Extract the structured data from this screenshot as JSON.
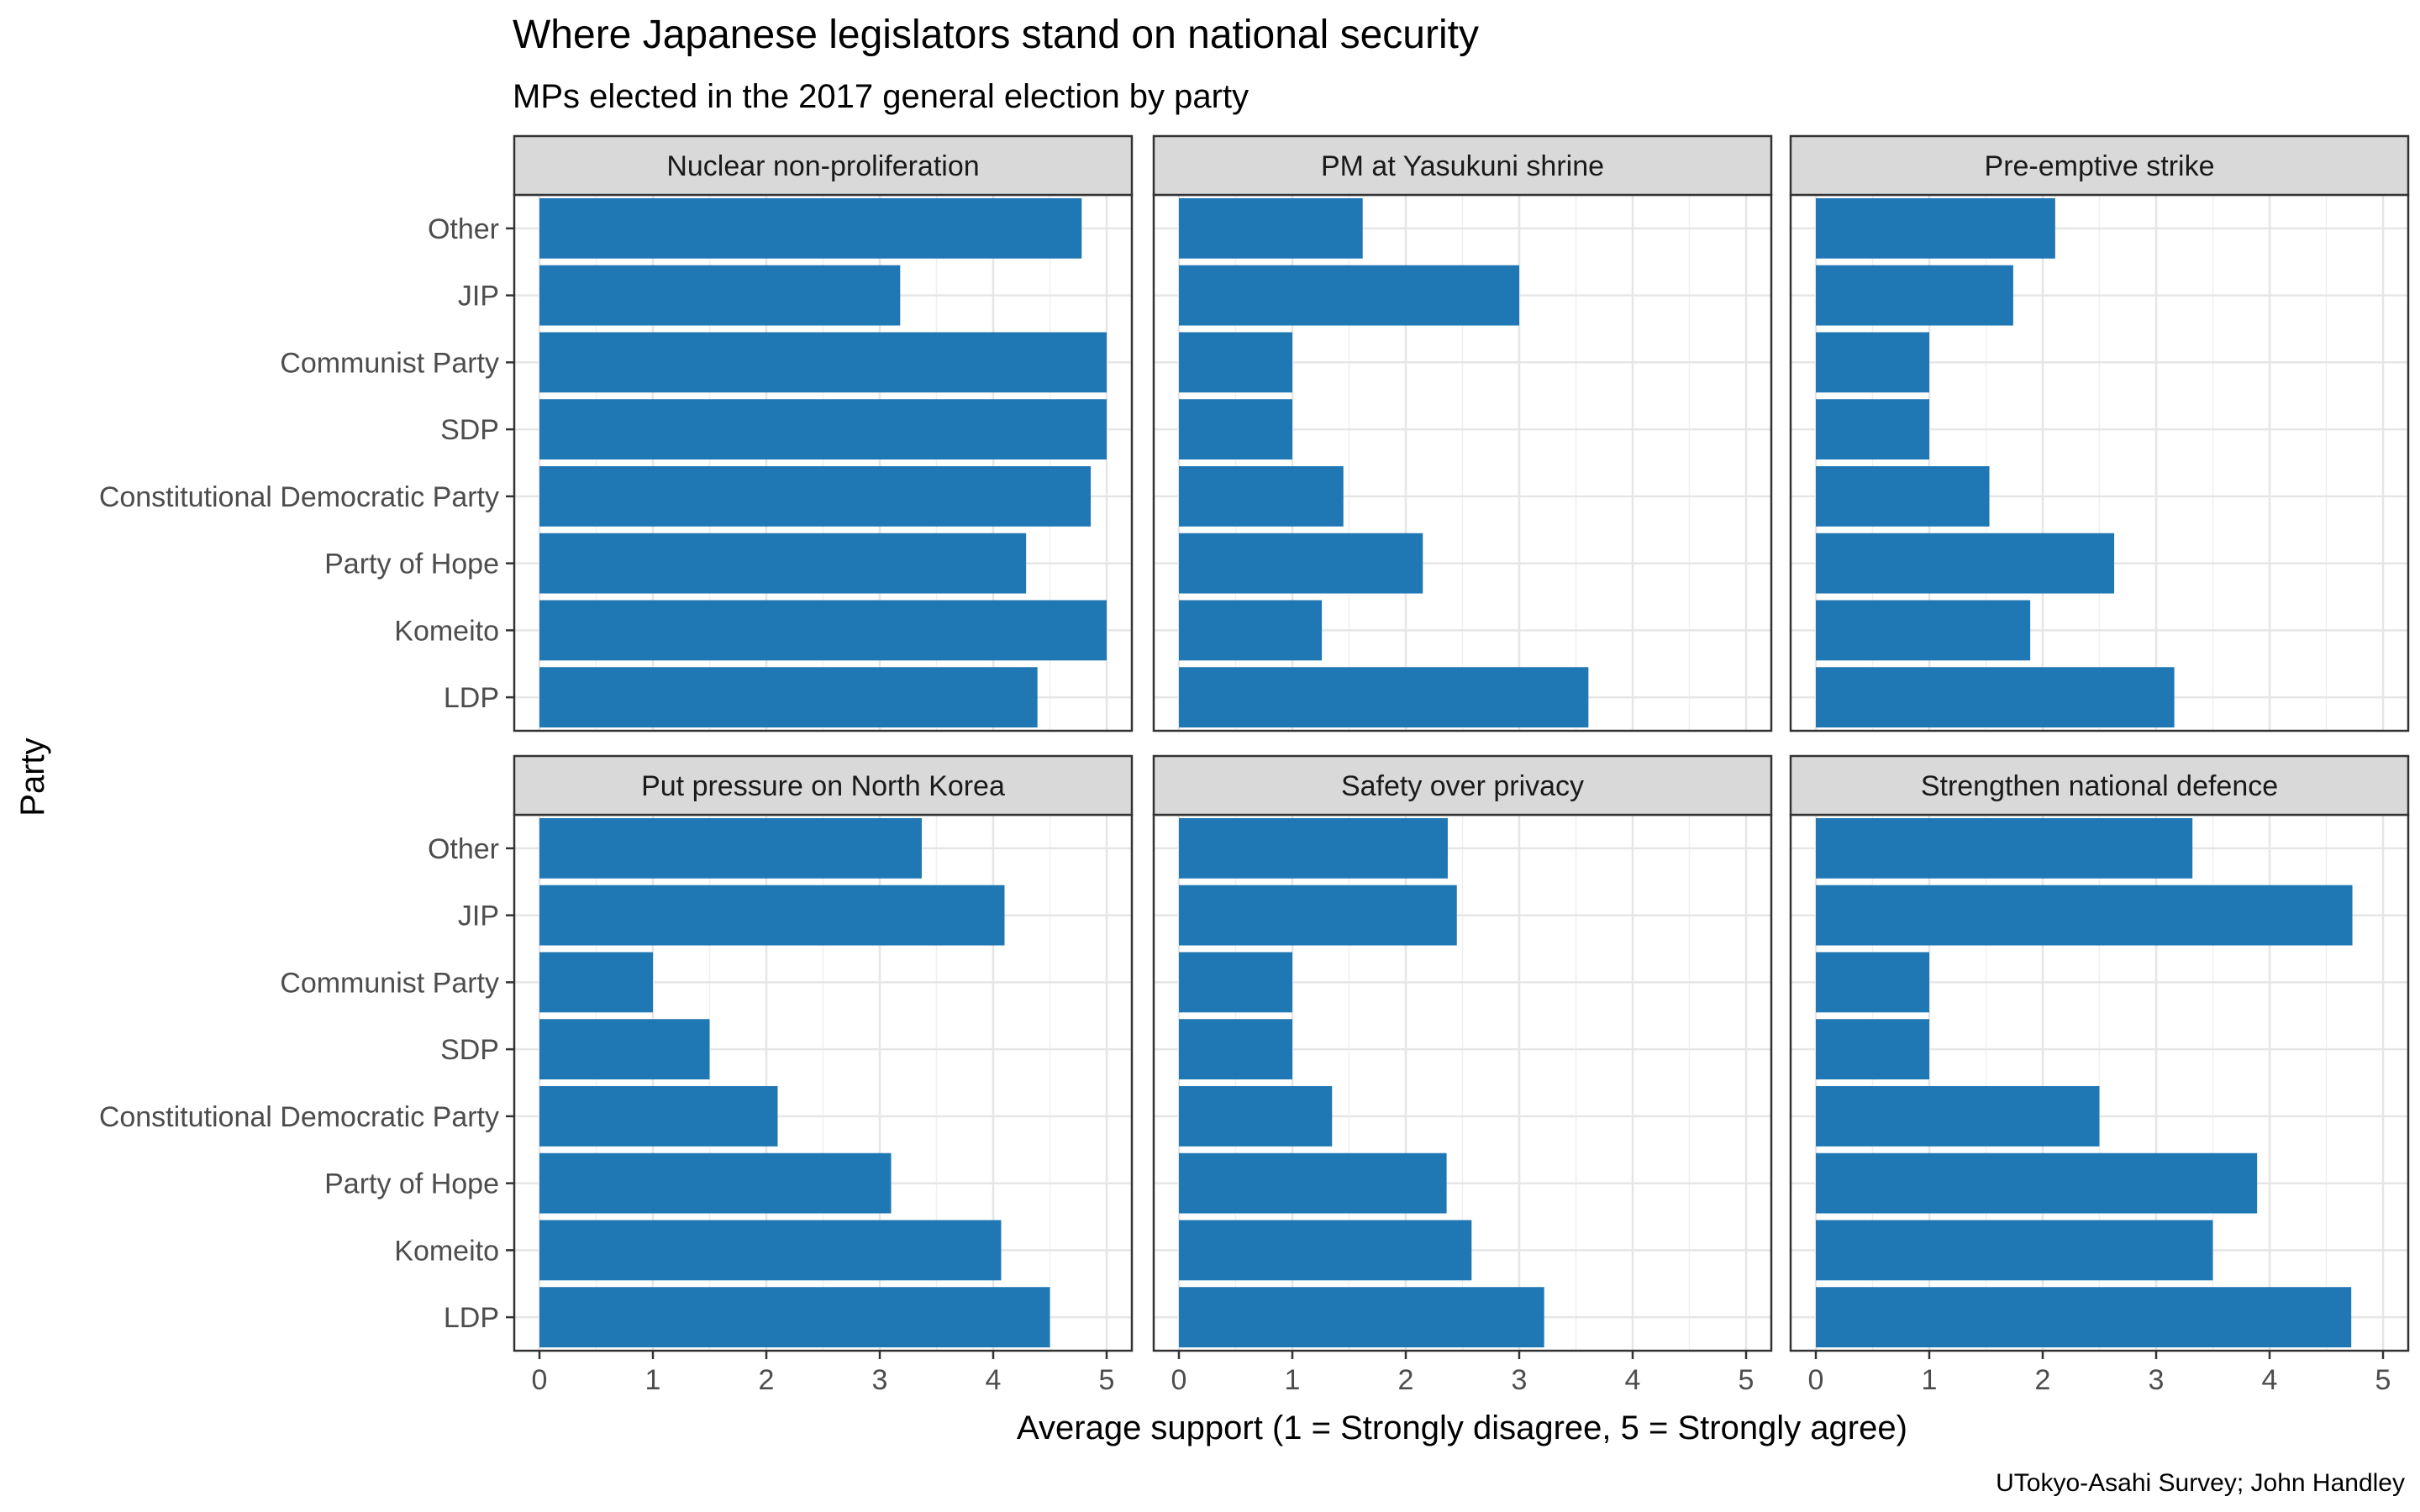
{
  "chart_data": {
    "type": "bar",
    "orientation": "horizontal",
    "title": "Where Japanese legislators stand on national security",
    "subtitle": "MPs elected in the 2017 general election by party",
    "xlabel": "Average support (1 = Strongly disagree, 5 = Strongly agree)",
    "ylabel": "Party",
    "caption": "UTokyo-Asahi Survey; John Handley",
    "xlim": [
      0,
      5
    ],
    "x_ticks": [
      "0",
      "1",
      "2",
      "3",
      "4",
      "5"
    ],
    "grid": true,
    "bar_color": "#1f77b4",
    "categories": [
      "Other",
      "JIP",
      "Communist Party",
      "SDP",
      "Constitutional Democratic Party",
      "Party of Hope",
      "Komeito",
      "LDP"
    ],
    "facets": [
      {
        "name": "Nuclear non-proliferation",
        "values": [
          4.78,
          3.18,
          5.0,
          5.0,
          4.86,
          4.29,
          5.0,
          4.39
        ]
      },
      {
        "name": "PM at Yasukuni shrine",
        "values": [
          1.62,
          3.0,
          1.0,
          1.0,
          1.45,
          2.15,
          1.26,
          3.61
        ]
      },
      {
        "name": "Pre-emptive strike",
        "values": [
          2.11,
          1.74,
          1.0,
          1.0,
          1.53,
          2.63,
          1.89,
          3.16
        ]
      },
      {
        "name": "Put pressure on North Korea",
        "values": [
          3.37,
          4.1,
          1.0,
          1.5,
          2.1,
          3.1,
          4.07,
          4.5
        ]
      },
      {
        "name": "Safety over privacy",
        "values": [
          2.37,
          2.45,
          1.0,
          1.0,
          1.35,
          2.36,
          2.58,
          3.22
        ]
      },
      {
        "name": "Strengthen national defence",
        "values": [
          3.32,
          4.73,
          1.0,
          1.0,
          2.5,
          3.89,
          3.5,
          4.72
        ]
      }
    ]
  }
}
